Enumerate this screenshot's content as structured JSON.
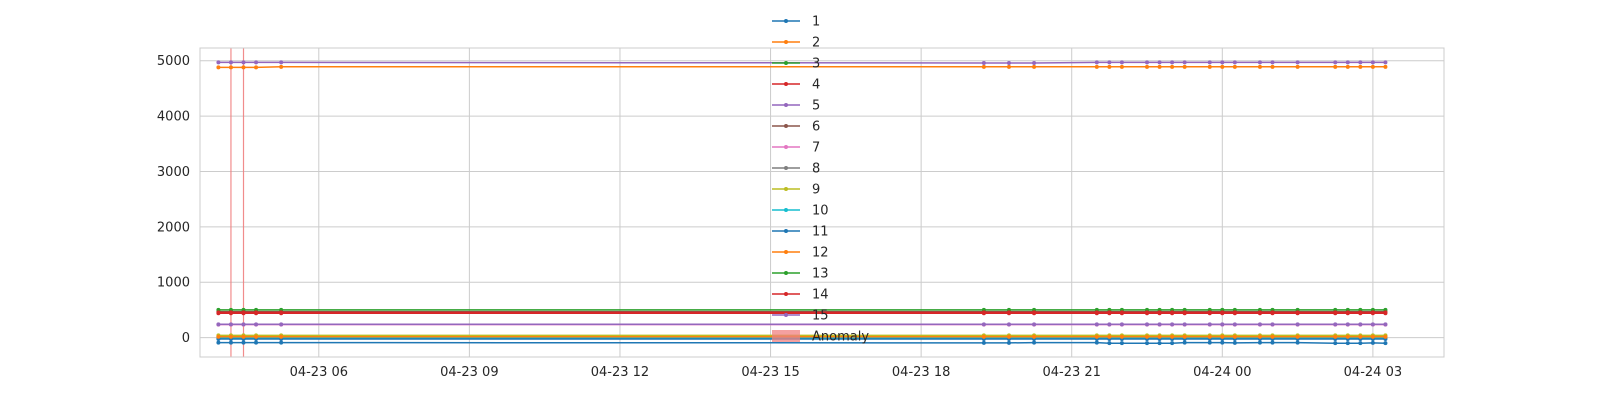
{
  "chart_data": {
    "type": "line",
    "title": "",
    "xlabel": "",
    "ylabel": "",
    "x_axis": {
      "type": "time",
      "range": [
        "2024-04-23 03:38",
        "2024-04-24 04:25"
      ],
      "ticks": [
        {
          "t": "2024-04-23 06:00",
          "label": "04-23 06"
        },
        {
          "t": "2024-04-23 09:00",
          "label": "04-23 09"
        },
        {
          "t": "2024-04-23 12:00",
          "label": "04-23 12"
        },
        {
          "t": "2024-04-23 15:00",
          "label": "04-23 15"
        },
        {
          "t": "2024-04-23 18:00",
          "label": "04-23 18"
        },
        {
          "t": "2024-04-23 21:00",
          "label": "04-23 21"
        },
        {
          "t": "2024-04-24 00:00",
          "label": "04-24 00"
        },
        {
          "t": "2024-04-24 03:00",
          "label": "04-24 03"
        }
      ]
    },
    "y_axis": {
      "range": [
        -350,
        5230
      ],
      "ticks": [
        {
          "v": 0,
          "label": "0"
        },
        {
          "v": 1000,
          "label": "1000"
        },
        {
          "v": 2000,
          "label": "2000"
        },
        {
          "v": 3000,
          "label": "3000"
        },
        {
          "v": 4000,
          "label": "4000"
        },
        {
          "v": 5000,
          "label": "5000"
        }
      ]
    },
    "grid": true,
    "legend_position": "top-center",
    "x": [
      "2024-04-23 04:00",
      "2024-04-23 04:15",
      "2024-04-23 04:30",
      "2024-04-23 04:45",
      "2024-04-23 05:15",
      "2024-04-23 19:15",
      "2024-04-23 19:45",
      "2024-04-23 20:15",
      "2024-04-23 21:30",
      "2024-04-23 21:45",
      "2024-04-23 22:00",
      "2024-04-23 22:30",
      "2024-04-23 22:45",
      "2024-04-23 23:00",
      "2024-04-23 23:15",
      "2024-04-23 23:45",
      "2024-04-24 00:00",
      "2024-04-24 00:15",
      "2024-04-24 00:45",
      "2024-04-24 01:00",
      "2024-04-24 01:30",
      "2024-04-24 02:15",
      "2024-04-24 02:30",
      "2024-04-24 02:45",
      "2024-04-24 03:00",
      "2024-04-24 03:15"
    ],
    "series": [
      {
        "name": "1",
        "color": "#1f77b4",
        "values": [
          -90,
          -90,
          -90,
          -90,
          -90,
          -95,
          -95,
          -90,
          -90,
          -100,
          -100,
          -100,
          -100,
          -100,
          -90,
          -90,
          -90,
          -95,
          -90,
          -90,
          -90,
          -100,
          -100,
          -100,
          -95,
          -100
        ]
      },
      {
        "name": "2",
        "color": "#ff7f0e",
        "values": [
          4880,
          4880,
          4880,
          4880,
          4890,
          4890,
          4890,
          4890,
          4890,
          4890,
          4890,
          4890,
          4890,
          4890,
          4890,
          4890,
          4890,
          4890,
          4890,
          4890,
          4890,
          4890,
          4890,
          4890,
          4890,
          4890
        ]
      },
      {
        "name": "3",
        "color": "#2ca02c",
        "values": [
          20,
          20,
          20,
          20,
          20,
          20,
          20,
          20,
          20,
          20,
          20,
          20,
          20,
          20,
          20,
          20,
          20,
          20,
          20,
          20,
          20,
          20,
          20,
          20,
          20,
          20
        ]
      },
      {
        "name": "4",
        "color": "#d62728",
        "values": [
          440,
          440,
          440,
          440,
          440,
          440,
          440,
          440,
          440,
          440,
          440,
          440,
          440,
          440,
          440,
          440,
          440,
          440,
          440,
          440,
          440,
          440,
          440,
          440,
          440,
          440
        ]
      },
      {
        "name": "5",
        "color": "#9467bd",
        "values": [
          4970,
          4970,
          4970,
          4970,
          4970,
          4960,
          4960,
          4960,
          4970,
          4970,
          4970,
          4970,
          4970,
          4970,
          4970,
          4970,
          4970,
          4970,
          4970,
          4970,
          4970,
          4970,
          4970,
          4970,
          4970,
          4970
        ]
      },
      {
        "name": "6",
        "color": "#8c564b",
        "values": [
          470,
          470,
          470,
          470,
          470,
          470,
          470,
          470,
          470,
          470,
          470,
          470,
          470,
          470,
          470,
          470,
          470,
          470,
          470,
          470,
          470,
          470,
          470,
          470,
          470,
          470
        ]
      },
      {
        "name": "7",
        "color": "#e377c2",
        "values": [
          235,
          235,
          235,
          235,
          235,
          235,
          235,
          235,
          235,
          235,
          235,
          235,
          235,
          235,
          235,
          235,
          235,
          235,
          235,
          235,
          235,
          235,
          235,
          235,
          235,
          235
        ]
      },
      {
        "name": "8",
        "color": "#7f7f7f",
        "values": [
          5,
          5,
          5,
          5,
          5,
          5,
          5,
          5,
          5,
          5,
          5,
          5,
          5,
          5,
          5,
          5,
          5,
          5,
          5,
          5,
          5,
          5,
          5,
          5,
          5,
          5
        ]
      },
      {
        "name": "9",
        "color": "#bcbd22",
        "values": [
          40,
          40,
          40,
          40,
          40,
          40,
          40,
          40,
          40,
          40,
          40,
          40,
          40,
          40,
          40,
          40,
          40,
          40,
          40,
          40,
          40,
          40,
          40,
          40,
          40,
          40
        ]
      },
      {
        "name": "10",
        "color": "#17becf",
        "values": [
          -10,
          -10,
          -10,
          -10,
          -10,
          -10,
          -10,
          -10,
          -10,
          -10,
          -10,
          -10,
          -10,
          -10,
          -10,
          -10,
          -10,
          -10,
          -10,
          -10,
          -10,
          -10,
          -10,
          -10,
          -10,
          -10
        ]
      },
      {
        "name": "11",
        "color": "#1f77b4",
        "values": [
          -25,
          -25,
          -25,
          -25,
          -25,
          -25,
          -25,
          -25,
          -25,
          -25,
          -25,
          -25,
          -25,
          -25,
          -25,
          -25,
          -25,
          -25,
          -25,
          -25,
          -25,
          -25,
          -25,
          -25,
          -25,
          -25
        ]
      },
      {
        "name": "12",
        "color": "#ff7f0e",
        "values": [
          15,
          15,
          15,
          15,
          15,
          15,
          15,
          15,
          15,
          15,
          15,
          15,
          15,
          15,
          15,
          15,
          15,
          15,
          15,
          15,
          15,
          15,
          15,
          15,
          15,
          15
        ]
      },
      {
        "name": "13",
        "color": "#2ca02c",
        "values": [
          500,
          500,
          500,
          500,
          500,
          500,
          500,
          500,
          500,
          500,
          500,
          500,
          500,
          500,
          500,
          500,
          500,
          500,
          500,
          500,
          500,
          500,
          500,
          500,
          500,
          500
        ]
      },
      {
        "name": "14",
        "color": "#d62728",
        "values": [
          455,
          455,
          455,
          455,
          455,
          455,
          455,
          455,
          455,
          455,
          455,
          455,
          455,
          455,
          455,
          455,
          455,
          455,
          455,
          455,
          455,
          455,
          455,
          455,
          455,
          455
        ]
      },
      {
        "name": "15",
        "color": "#9467bd",
        "values": [
          240,
          240,
          240,
          240,
          240,
          240,
          240,
          240,
          240,
          240,
          240,
          240,
          240,
          240,
          240,
          240,
          240,
          240,
          240,
          240,
          240,
          240,
          240,
          240,
          240,
          240
        ]
      }
    ],
    "anomalies": [
      "2024-04-23 04:15",
      "2024-04-23 04:30"
    ],
    "anomaly_label": "Anomaly",
    "anomaly_color": "#f08080"
  }
}
